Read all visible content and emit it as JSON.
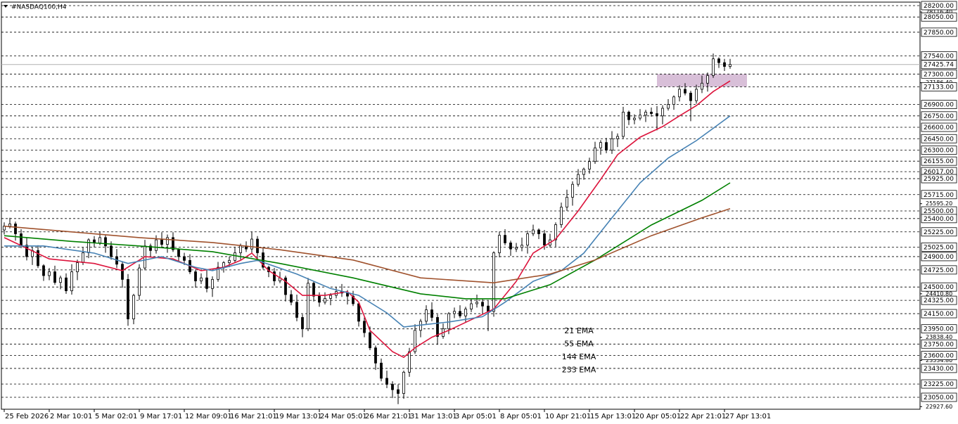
{
  "chart_data": {
    "type": "candlestick",
    "title": "#NASDAQ100,H4",
    "xlim": [
      -0.5,
      162.75
    ],
    "ylim": [
      22893,
      28246
    ],
    "up_color": "#ffffff",
    "down_color": "#000000",
    "xticks": [
      {
        "value": 0,
        "label": "25 Feb 2026"
      },
      {
        "value": 8,
        "label": "2 Mar 10:01"
      },
      {
        "value": 16,
        "label": "5 Mar 02:01"
      },
      {
        "value": 24,
        "label": "9 Mar 17:01"
      },
      {
        "value": 32,
        "label": "12 Mar 09:01"
      },
      {
        "value": 40,
        "label": "16 Mar 21:01"
      },
      {
        "value": 48,
        "label": "19 Mar 13:01"
      },
      {
        "value": 56,
        "label": "24 Mar 05:01"
      },
      {
        "value": 64,
        "label": "26 Mar 21:01"
      },
      {
        "value": 72,
        "label": "31 Mar 13:01"
      },
      {
        "value": 80,
        "label": "3 Apr 05:01"
      },
      {
        "value": 88,
        "label": "8 Apr 05:01"
      },
      {
        "value": 96,
        "label": "10 Apr 21:01"
      },
      {
        "value": 104,
        "label": "15 Apr 13:01"
      },
      {
        "value": 112,
        "label": "20 Apr 05:01"
      },
      {
        "value": 120,
        "label": "22 Apr 21:01"
      },
      {
        "value": 128,
        "label": "27 Apr 13:01"
      }
    ],
    "yticks": [
      {
        "value": 28116.4,
        "label": "28116.40"
      },
      {
        "value": 27186.4,
        "label": "27186.40"
      },
      {
        "value": 25595.2,
        "label": "25595.20"
      },
      {
        "value": 24410.8,
        "label": "24410.80"
      },
      {
        "value": 23838.4,
        "label": "23838.40"
      },
      {
        "value": 23534.8,
        "label": "23534.80"
      },
      {
        "value": 22927.6,
        "label": "22927.60"
      }
    ],
    "levels": [
      {
        "value": 28200,
        "label": "28200.00"
      },
      {
        "value": 28050,
        "label": "28050.00"
      },
      {
        "value": 27850,
        "label": "27850.00"
      },
      {
        "value": 27540,
        "label": "27540.00"
      },
      {
        "value": 27300,
        "label": "27300.00"
      },
      {
        "value": 27133,
        "label": "27133.00"
      },
      {
        "value": 26900,
        "label": "26900.00"
      },
      {
        "value": 26750,
        "label": "26750.00"
      },
      {
        "value": 26600,
        "label": "26600.00"
      },
      {
        "value": 26450,
        "label": "26450.00"
      },
      {
        "value": 26300,
        "label": "26300.00"
      },
      {
        "value": 26155,
        "label": "26155.00"
      },
      {
        "value": 26017,
        "label": "26017.00"
      },
      {
        "value": 25925,
        "label": "25925.00"
      },
      {
        "value": 25715,
        "label": "25715.00"
      },
      {
        "value": 25500,
        "label": "25500.00"
      },
      {
        "value": 25400,
        "label": "25400.00"
      },
      {
        "value": 25225,
        "label": "25225.00"
      },
      {
        "value": 25025,
        "label": "25025.00"
      },
      {
        "value": 24900,
        "label": "24900.00"
      },
      {
        "value": 24725,
        "label": "24725.00"
      },
      {
        "value": 24500,
        "label": "24500.00"
      },
      {
        "value": 24325,
        "label": "24325.00"
      },
      {
        "value": 24150,
        "label": "24150.00"
      },
      {
        "value": 23950,
        "label": "23950.00"
      },
      {
        "value": 23750,
        "label": "23750.00"
      },
      {
        "value": 23600,
        "label": "23600.00"
      },
      {
        "value": 23430,
        "label": "23430.00"
      },
      {
        "value": 23225,
        "label": "23225.00"
      },
      {
        "value": 23050,
        "label": "23050.00"
      }
    ],
    "last_price": 27425.74,
    "zone": {
      "xlim": [
        116,
        132
      ],
      "ylim": [
        27133,
        27300
      ],
      "color": "#d8bfd8"
    },
    "open": [
      25250,
      25300,
      25330,
      25200,
      25050,
      24900,
      24980,
      24780,
      24650,
      24700,
      24560,
      24620,
      24450,
      24700,
      24820,
      24950,
      25120,
      25080,
      25150,
      25040,
      24900,
      24800,
      24600,
      24080,
      24390,
      24750,
      25040,
      24980,
      25120,
      25060,
      25150,
      24990,
      24900,
      24850,
      24700,
      24580,
      24620,
      24480,
      24600,
      24760,
      24820,
      24850,
      24950,
      25040,
      25000,
      25130,
      24950,
      24760,
      24700,
      24580,
      24620,
      24400,
      24300,
      24100,
      23950,
      24550,
      24380,
      24300,
      24350,
      24390,
      24440,
      24420,
      24380,
      24280,
      24050,
      23900,
      23700,
      23500,
      23300,
      23220,
      23150,
      23100,
      23380,
      23650,
      23930,
      24050,
      24200,
      24100,
      23850,
      23950,
      24150,
      24180,
      24120,
      24210,
      24280,
      24300,
      24250,
      24180,
      24950,
      25180,
      25080,
      25000,
      25020,
      25050,
      25200,
      25250,
      25200,
      25050,
      25120,
      25320,
      25550,
      25680,
      25850,
      25980,
      26050,
      26150,
      26330,
      26400,
      26300,
      26450,
      26480,
      26800,
      26700,
      26720,
      26760,
      26800,
      26780,
      26750,
      26850,
      26900,
      27000,
      27100,
      27050,
      26950,
      27100,
      27180,
      27280,
      27500,
      27450,
      27400
    ],
    "high": [
      25350,
      25410,
      25360,
      25260,
      25150,
      25020,
      25050,
      24800,
      24750,
      24780,
      24650,
      24680,
      24800,
      24860,
      25020,
      25140,
      25170,
      25230,
      25180,
      25100,
      25000,
      24840,
      24670,
      24410,
      24800,
      25120,
      25070,
      25180,
      25220,
      25190,
      25220,
      25010,
      24950,
      24930,
      24730,
      24680,
      24720,
      24640,
      24830,
      24840,
      24900,
      25030,
      25070,
      25100,
      25230,
      25170,
      25020,
      24780,
      24750,
      24700,
      24650,
      24460,
      24400,
      24140,
      24620,
      24570,
      24430,
      24430,
      24420,
      24500,
      24540,
      24460,
      24450,
      24300,
      24100,
      23980,
      23730,
      23560,
      23400,
      23260,
      23220,
      23400,
      23700,
      24010,
      24080,
      24260,
      24300,
      24140,
      24020,
      24170,
      24230,
      24260,
      24240,
      24340,
      24400,
      24340,
      24320,
      24970,
      25230,
      25260,
      25110,
      25080,
      25150,
      25240,
      25320,
      25270,
      25250,
      25200,
      25350,
      25610,
      25780,
      25890,
      26050,
      26070,
      26200,
      26410,
      26430,
      26460,
      26550,
      26520,
      26870,
      26820,
      26770,
      26840,
      26830,
      26860,
      26880,
      26890,
      26970,
      27020,
      27150,
      27180,
      27080,
      27160,
      27280,
      27320,
      27570,
      27520,
      27500,
      27500
    ],
    "low": [
      25190,
      25270,
      25110,
      25010,
      24850,
      24790,
      24750,
      24580,
      24590,
      24530,
      24470,
      24410,
      24400,
      24590,
      24790,
      24880,
      25020,
      25050,
      24950,
      24860,
      24750,
      24490,
      23990,
      24010,
      24330,
      24720,
      24890,
      24940,
      25010,
      24950,
      24960,
      24830,
      24790,
      24670,
      24490,
      24540,
      24430,
      24370,
      24570,
      24690,
      24760,
      24820,
      24860,
      24960,
      24950,
      24840,
      24730,
      24630,
      24520,
      24550,
      24310,
      24260,
      24050,
      23840,
      23920,
      24310,
      24240,
      24270,
      24260,
      24350,
      24370,
      24270,
      24250,
      23980,
      23840,
      23670,
      23410,
      23260,
      23170,
      23040,
      22960,
      23030,
      23320,
      23620,
      23840,
      24010,
      24050,
      23740,
      23820,
      23880,
      24090,
      24090,
      24030,
      24170,
      24230,
      24140,
      23920,
      24110,
      24890,
      25050,
      24910,
      24960,
      24970,
      24940,
      25170,
      25130,
      24990,
      25020,
      25030,
      25280,
      25500,
      25570,
      25820,
      25910,
      25990,
      26120,
      26240,
      26260,
      26250,
      26340,
      26450,
      26630,
      26640,
      26690,
      26670,
      26740,
      26560,
      26640,
      26820,
      26830,
      26940,
      27020,
      26680,
      26910,
      27050,
      27070,
      27250,
      27380,
      27340,
      27370
    ],
    "close": [
      25300,
      25330,
      25200,
      25050,
      24900,
      24980,
      24780,
      24650,
      24700,
      24560,
      24620,
      24450,
      24700,
      24820,
      24950,
      25120,
      25080,
      25150,
      25040,
      24900,
      24800,
      24600,
      24080,
      24390,
      24750,
      25040,
      24980,
      25120,
      25060,
      25150,
      24990,
      24900,
      24850,
      24700,
      24580,
      24620,
      24480,
      24600,
      24760,
      24820,
      24850,
      24950,
      25040,
      25000,
      25130,
      24950,
      24760,
      24700,
      24580,
      24620,
      24400,
      24300,
      24100,
      23950,
      24550,
      24380,
      24300,
      24350,
      24390,
      24440,
      24420,
      24380,
      24280,
      24050,
      23900,
      23700,
      23500,
      23300,
      23220,
      23150,
      23100,
      23380,
      23650,
      23930,
      24050,
      24200,
      24100,
      23850,
      23950,
      24150,
      24180,
      24120,
      24210,
      24280,
      24300,
      24250,
      24180,
      24950,
      25180,
      25080,
      25000,
      25020,
      25050,
      25200,
      25250,
      25200,
      25050,
      25120,
      25320,
      25550,
      25680,
      25850,
      25980,
      26050,
      26150,
      26330,
      26400,
      26300,
      26450,
      26480,
      26800,
      26700,
      26720,
      26760,
      26800,
      26780,
      26750,
      26850,
      26900,
      27000,
      27100,
      27050,
      26950,
      27100,
      27180,
      27280,
      27500,
      27450,
      27400,
      27425.74
    ],
    "series": [
      {
        "name": "21 EMA",
        "color": "#dc143c",
        "x": [
          0,
          8,
          16,
          21,
          25,
          30,
          35,
          39,
          42,
          44,
          47,
          50,
          53,
          57,
          61,
          63,
          65,
          69,
          71,
          73,
          76,
          79,
          83,
          87,
          91,
          94,
          98,
          102,
          106,
          109,
          113,
          117,
          120,
          123,
          126,
          129
        ],
        "values": [
          25150,
          24870,
          24810,
          24715,
          24900,
          24870,
          24715,
          24760,
          24850,
          24945,
          24715,
          24575,
          24390,
          24390,
          24440,
          24300,
          23930,
          23650,
          23575,
          23700,
          23840,
          23930,
          24070,
          24210,
          24575,
          24945,
          25130,
          25500,
          25915,
          26240,
          26470,
          26610,
          26750,
          26885,
          27070,
          27210
        ]
      },
      {
        "name": "55 EMA",
        "color": "#4682b4",
        "x": [
          0,
          7,
          16,
          22,
          28,
          34,
          37,
          42,
          45,
          52,
          58,
          63,
          68,
          71,
          74,
          79,
          85,
          89,
          94,
          99,
          103,
          108,
          113,
          118,
          123,
          129
        ],
        "values": [
          25040,
          25040,
          24945,
          24810,
          24900,
          24760,
          24715,
          24810,
          24850,
          24670,
          24480,
          24390,
          24160,
          23975,
          24000,
          24040,
          24110,
          24300,
          24575,
          24715,
          24945,
          25410,
          25870,
          26195,
          26425,
          26750
        ]
      },
      {
        "name": "144 EMA",
        "color": "#008000",
        "x": [
          0,
          12,
          24,
          37,
          49,
          62,
          74,
          82,
          89,
          97,
          105,
          115,
          124,
          129
        ],
        "values": [
          25175,
          25100,
          25040,
          24965,
          24810,
          24620,
          24410,
          24345,
          24345,
          24530,
          24855,
          25315,
          25640,
          25870
        ]
      },
      {
        "name": "233 EMA",
        "color": "#a0522d",
        "x": [
          0,
          12,
          24,
          37,
          49,
          62,
          74,
          87,
          97,
          105,
          115,
          124,
          129
        ],
        "values": [
          25300,
          25225,
          25150,
          25085,
          24990,
          24855,
          24620,
          24555,
          24670,
          24855,
          25175,
          25410,
          25530
        ]
      }
    ]
  }
}
